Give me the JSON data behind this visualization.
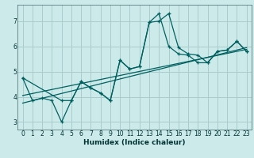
{
  "xlabel": "Humidex (Indice chaleur)",
  "bg_color": "#cceaea",
  "grid_color": "#aacccc",
  "line_color": "#006060",
  "xlim": [
    -0.5,
    23.5
  ],
  "ylim": [
    2.7,
    7.65
  ],
  "xticks": [
    0,
    1,
    2,
    3,
    4,
    5,
    6,
    7,
    8,
    9,
    10,
    11,
    12,
    13,
    14,
    15,
    16,
    17,
    18,
    19,
    20,
    21,
    22,
    23
  ],
  "yticks": [
    3,
    4,
    5,
    6,
    7
  ],
  "series1_x": [
    0,
    1,
    2,
    3,
    4,
    5,
    6,
    7,
    8,
    9,
    10,
    11,
    12,
    13,
    14,
    15,
    16,
    17,
    18,
    19,
    20,
    21,
    22,
    23
  ],
  "series1_y": [
    4.75,
    3.85,
    3.95,
    3.85,
    3.0,
    3.85,
    4.6,
    4.35,
    4.15,
    3.85,
    5.45,
    5.1,
    5.2,
    6.95,
    7.0,
    7.3,
    5.95,
    5.7,
    5.65,
    5.35,
    5.8,
    5.85,
    6.2,
    5.8
  ],
  "series2_x": [
    0,
    4,
    5,
    6,
    7,
    8,
    9,
    10,
    11,
    12,
    13,
    14,
    15,
    16,
    17,
    18,
    19,
    20,
    21,
    22,
    23
  ],
  "series2_y": [
    4.75,
    3.85,
    3.85,
    4.6,
    4.35,
    4.15,
    3.85,
    5.45,
    5.1,
    5.2,
    6.95,
    7.3,
    6.0,
    5.7,
    5.65,
    5.35,
    5.35,
    5.8,
    5.85,
    6.2,
    5.8
  ],
  "trend1_x": [
    0,
    23
  ],
  "trend1_y": [
    4.05,
    5.88
  ],
  "trend2_x": [
    0,
    23
  ],
  "trend2_y": [
    3.75,
    5.95
  ]
}
